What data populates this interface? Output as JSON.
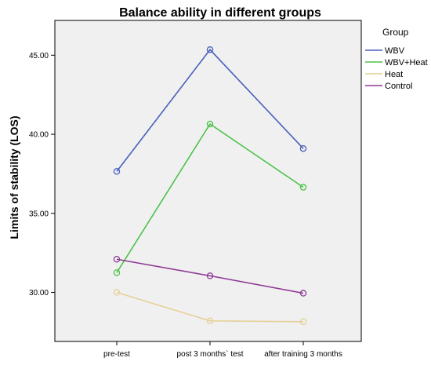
{
  "chart_data": {
    "type": "line",
    "title": "Balance ability in different groups",
    "xlabel": "",
    "ylabel": "Limits of stability (LOS)",
    "categories": [
      "pre-test",
      "post 3 months` test",
      "after training 3 months"
    ],
    "ylim": [
      26.9,
      47.2
    ],
    "yticks": [
      30,
      35,
      40,
      45
    ],
    "ytick_labels": [
      "30.00",
      "35.00",
      "40.00",
      "45.00"
    ],
    "grid": false,
    "background": "#f0f0f0",
    "markers": "open-circle",
    "legend": {
      "title": "Group",
      "placement": "right"
    },
    "series": [
      {
        "name": "WBV",
        "color": "#4a5fbd",
        "values": [
          37.65,
          45.35,
          39.1
        ]
      },
      {
        "name": "WBV+Heat",
        "color": "#4cc24a",
        "values": [
          31.25,
          40.65,
          36.65
        ]
      },
      {
        "name": "Heat",
        "color": "#e6d09a",
        "values": [
          30.0,
          28.2,
          28.15
        ]
      },
      {
        "name": "Control",
        "color": "#8e3a96",
        "values": [
          32.1,
          31.05,
          29.95
        ]
      }
    ]
  }
}
